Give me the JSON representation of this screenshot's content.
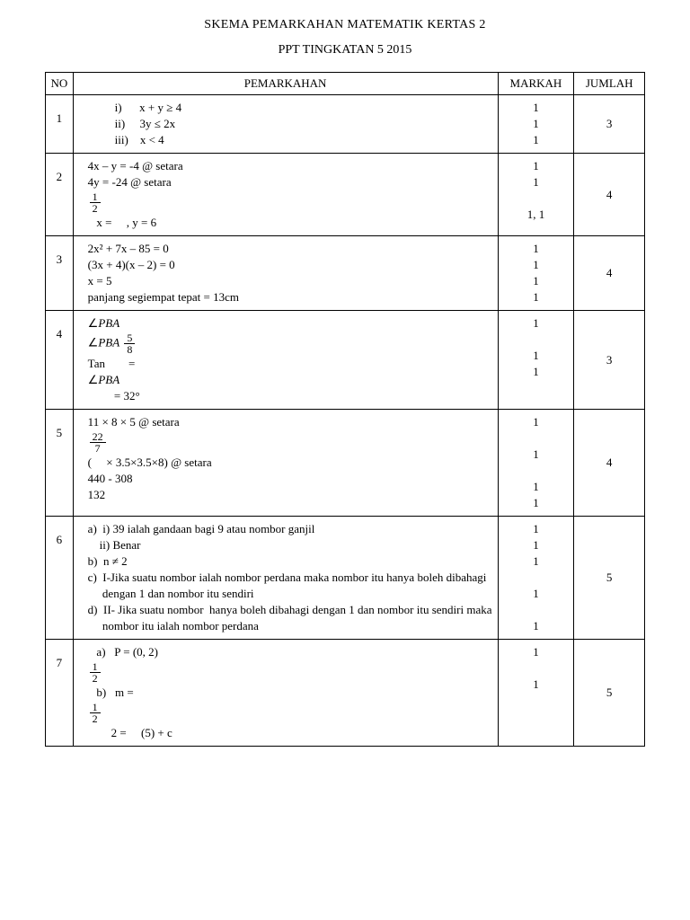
{
  "title": "SKEMA PEMARKAHAN MATEMATIK KERTAS 2",
  "subtitle": "PPT TINGKATAN 5 2015",
  "headers": {
    "no": "NO",
    "pemarkahan": "PEMARKAHAN",
    "markah": "MARKAH",
    "jumlah": "JUMLAH"
  },
  "rows": [
    {
      "no": "1",
      "lines": [
        {
          "text": "i)      x + y ≥ 4",
          "indent": true
        },
        {
          "text": "ii)     3y ≤ 2x",
          "indent": true
        },
        {
          "text": "iii)    x < 4",
          "indent": true
        }
      ],
      "markah": [
        "1",
        "1",
        "1"
      ],
      "jumlah": "3"
    },
    {
      "no": "2",
      "lines": [
        {
          "text": "4x – y = -4 @ setara"
        },
        {
          "text": "4y = -24 @ setara"
        },
        {
          "frac": {
            "num": "1",
            "den": "2"
          },
          "prefix": "      "
        },
        {
          "text": "   x =     , y = 6"
        }
      ],
      "markah": [
        "1",
        "1",
        "",
        "1, 1"
      ],
      "jumlah": "4"
    },
    {
      "no": "3",
      "lines": [
        {
          "text": "2x² + 7x – 85 = 0"
        },
        {
          "text": "(3x + 4)(x – 2) = 0"
        },
        {
          "text": "x = 5"
        },
        {
          "text": "panjang segiempat tepat = 13cm"
        }
      ],
      "markah": [
        "1",
        "1",
        "1",
        "1"
      ],
      "jumlah": "4"
    },
    {
      "no": "4",
      "lines": [
        {
          "html": "∠<i>PBA</i>"
        },
        {
          "html": "      ∠<i>PBA</i>   <span class='frac'><span class='num'>5</span><span class='den'>8</span></span>"
        },
        {
          "text": "Tan        ="
        },
        {
          "html": "∠<i>PBA</i>"
        },
        {
          "text": "         = 32°"
        }
      ],
      "markah": [
        "1",
        "",
        "1",
        "1"
      ],
      "jumlah": "3"
    },
    {
      "no": "5",
      "lines": [
        {
          "text": "11 × 8 × 5 @ setara"
        },
        {
          "frac": {
            "num": "22",
            "den": "7"
          }
        },
        {
          "text": "(     × 3.5×3.5×8) @ setara"
        },
        {
          "text": "440 - 308"
        },
        {
          "text": "132"
        }
      ],
      "markah": [
        "1",
        "",
        "1",
        "",
        "1",
        "1"
      ],
      "jumlah": "4"
    },
    {
      "no": "6",
      "lines": [
        {
          "text": "a)  i) 39 ialah gandaan bagi 9 atau nombor ganjil"
        },
        {
          "text": "    ii) Benar"
        },
        {
          "text": "b)  n ≠ 2"
        },
        {
          "text": "c)  I-Jika suatu nombor ialah nombor perdana maka nombor itu hanya boleh dibahagi"
        },
        {
          "text": "     dengan 1 dan nombor itu sendiri"
        },
        {
          "text": "d)  II- Jika suatu nombor  hanya boleh dibahagi dengan 1 dan nombor itu sendiri maka"
        },
        {
          "text": "     nombor itu ialah nombor perdana"
        }
      ],
      "markah": [
        "1",
        "1",
        "1",
        "",
        "1",
        "",
        "1"
      ],
      "jumlah": "5"
    },
    {
      "no": "7",
      "lines": [
        {
          "text": "   a)   P = (0, 2)"
        },
        {
          "frac": {
            "num": "1",
            "den": "2"
          },
          "prefix": "         "
        },
        {
          "text": "   b)   m ="
        },
        {
          "text": ""
        },
        {
          "frac": {
            "num": "1",
            "den": "2"
          },
          "prefix": "         "
        },
        {
          "text": "        2 =     (5) + c"
        }
      ],
      "markah": [
        "1",
        "",
        "1",
        "",
        "",
        ""
      ],
      "jumlah": "5"
    }
  ]
}
